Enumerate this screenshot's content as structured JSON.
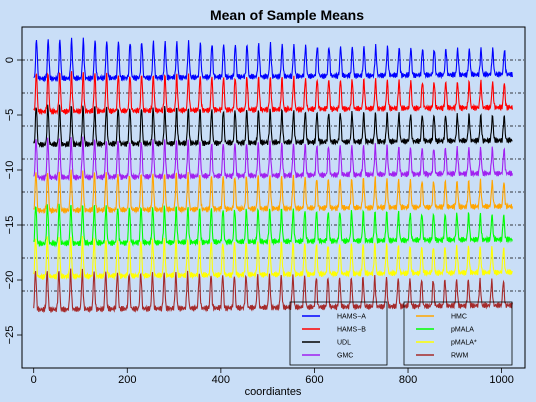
{
  "chart_data": {
    "type": "line",
    "title": "Mean of Sample Means",
    "xlabel": "coordiantes",
    "ylabel": "",
    "xlim": [
      -25,
      1050
    ],
    "ylim": [
      -28,
      3
    ],
    "x_ticks": [
      0,
      200,
      400,
      600,
      800,
      1000
    ],
    "y_ticks": [
      0,
      -5,
      -10,
      -15,
      -20,
      -25
    ],
    "grid": false,
    "legend_position": "bottom-right",
    "n_points": 1024,
    "signal": {
      "description_hidden": true,
      "period": 25,
      "peak_height_start": 1.9,
      "peak_height_end": 0.9,
      "trough_start": -1.7,
      "trough_end": -1.3
    },
    "series": [
      {
        "name": "HAMS−A",
        "offset": 0,
        "color": "#0000ff"
      },
      {
        "name": "HAMS−B",
        "offset": -3,
        "color": "#ff0000"
      },
      {
        "name": "UDL",
        "offset": -6,
        "color": "#000000"
      },
      {
        "name": "GMC",
        "offset": -9,
        "color": "#a020f0"
      },
      {
        "name": "HMC",
        "offset": -12,
        "color": "#ffa500"
      },
      {
        "name": "pMALA",
        "offset": -15,
        "color": "#00ff00"
      },
      {
        "name": "pMALA*",
        "offset": -18,
        "color": "#ffff00"
      },
      {
        "name": "RWM",
        "offset": -21,
        "color": "#a52a2a"
      }
    ],
    "reference_lines": [
      0,
      -3,
      -6,
      -9,
      -12,
      -15,
      -18,
      -21
    ]
  }
}
